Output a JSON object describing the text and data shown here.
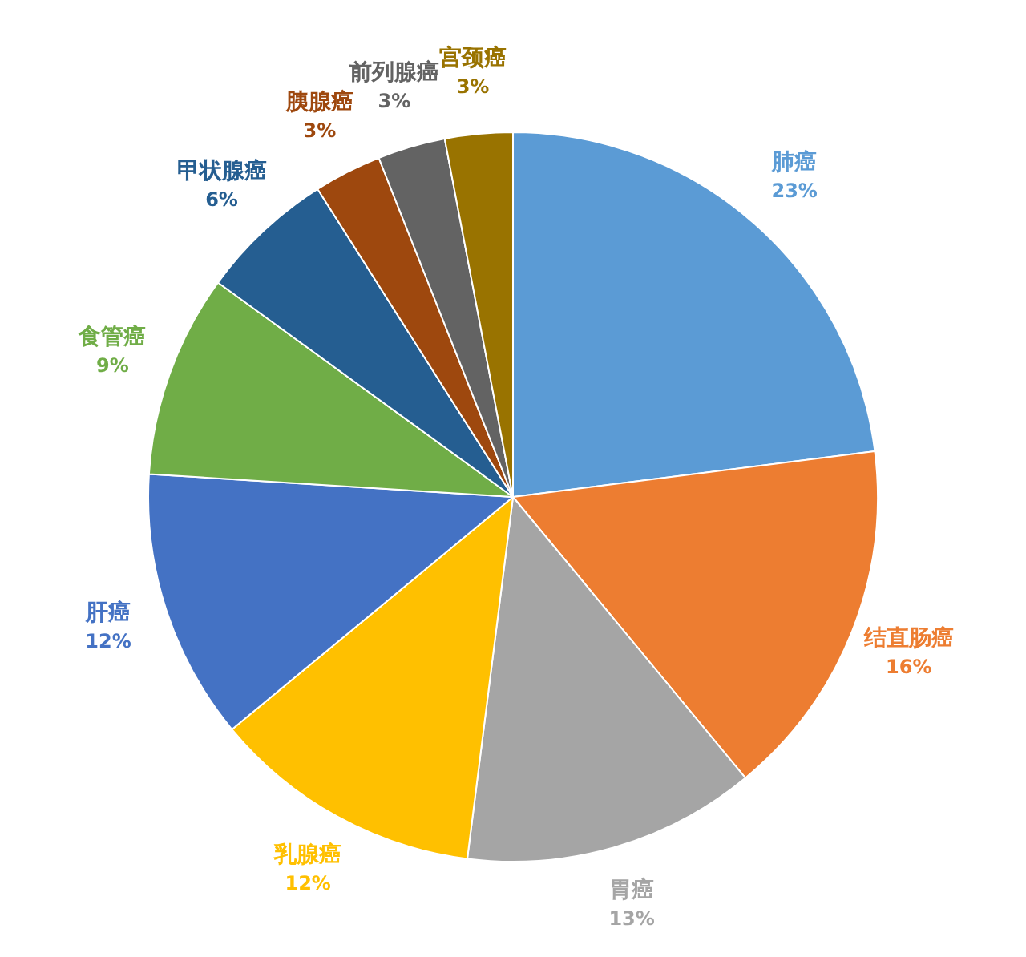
{
  "chart_data": {
    "type": "pie",
    "categories": [
      "肺癌",
      "结直肠癌",
      "胃癌",
      "乳腺癌",
      "肝癌",
      "食管癌",
      "甲状腺癌",
      "胰腺癌",
      "前列腺癌",
      "宫颈癌"
    ],
    "values": [
      23,
      16,
      13,
      12,
      12,
      9,
      6,
      3,
      3,
      3
    ],
    "value_labels": [
      "23%",
      "16%",
      "13%",
      "12%",
      "12%",
      "9%",
      "6%",
      "3%",
      "3%",
      "3%"
    ],
    "colors": [
      "#5b9bd5",
      "#ed7d31",
      "#a5a5a5",
      "#ffc000",
      "#4472c4",
      "#70ad47",
      "#255e91",
      "#9e480e",
      "#636363",
      "#997300"
    ],
    "legend": false
  }
}
